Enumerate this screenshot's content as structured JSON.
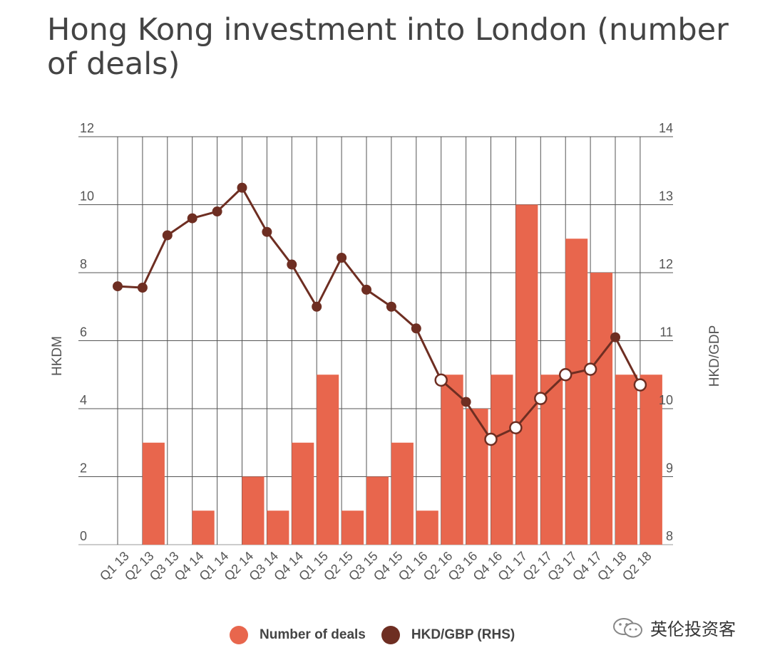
{
  "chart_data": {
    "type": "bar",
    "title": "Hong Kong investment into London (number of deals)",
    "categories": [
      "Q1 13",
      "Q2 13",
      "Q3 13",
      "Q4 14",
      "Q1 14",
      "Q2 14",
      "Q3 14",
      "Q4 14",
      "Q1 15",
      "Q2 15",
      "Q3 15",
      "Q4 15",
      "Q1 16",
      "Q2 16",
      "Q3 16",
      "Q4 16",
      "Q1 17",
      "Q2 17",
      "Q3 17",
      "Q4 17",
      "Q1 18",
      "Q2 18"
    ],
    "y_left_label": "HKDM",
    "y_right_label": "HKD/GDP",
    "y_left_range": [
      0,
      12
    ],
    "y_left_ticks": [
      0,
      2,
      4,
      6,
      8,
      10,
      12
    ],
    "y_right_range": [
      8,
      14
    ],
    "y_right_ticks": [
      8,
      9,
      10,
      11,
      12,
      13,
      14
    ],
    "grid": true,
    "legend_position": "bottom",
    "series": [
      {
        "name": "Number of deals",
        "type": "bar",
        "axis": "left",
        "color": "#e8664d",
        "values": [
          0,
          3,
          0,
          1,
          0,
          2,
          1,
          3,
          5,
          1,
          2,
          3,
          1,
          5,
          4,
          5,
          10,
          5,
          9,
          8,
          5,
          5
        ]
      },
      {
        "name": "HKD/GBP (RHS)",
        "type": "line",
        "axis": "right",
        "color": "#6e2e22",
        "values": [
          11.8,
          11.78,
          12.55,
          12.8,
          12.9,
          13.25,
          12.6,
          12.12,
          11.5,
          12.22,
          11.75,
          11.5,
          11.18,
          10.42,
          10.1,
          9.55,
          9.72,
          10.15,
          10.5,
          10.58,
          11.05,
          10.35
        ]
      }
    ]
  },
  "legend": {
    "items": [
      {
        "label": "Number of deals",
        "color": "#e8664d"
      },
      {
        "label": "HKD/GBP (RHS)",
        "color": "#6e2e22"
      }
    ]
  },
  "watermark": {
    "text": "英伦投资客",
    "icon": "wechat-icon"
  }
}
